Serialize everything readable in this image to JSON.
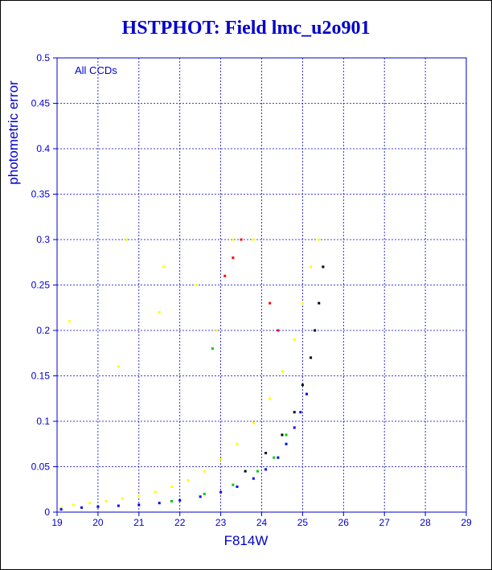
{
  "chart_data": {
    "type": "scatter",
    "title": "HSTPHOT: Field lmc_u2o901",
    "xlabel": "F814W",
    "ylabel": "photometric error",
    "annotation": "All CCDs",
    "xlim": [
      19,
      29
    ],
    "ylim": [
      0,
      0.5
    ],
    "x_ticks": [
      "19",
      "20",
      "21",
      "22",
      "23",
      "24",
      "25",
      "26",
      "27",
      "28",
      "29"
    ],
    "y_ticks": [
      "0",
      "0.05",
      "0.1",
      "0.15",
      "0.2",
      "0.25",
      "0.3",
      "0.35",
      "0.4",
      "0.45",
      "0.5"
    ],
    "grid": true,
    "series": [
      {
        "color": "#ffff00",
        "points": [
          [
            19.1,
            0.005
          ],
          [
            19.4,
            0.008
          ],
          [
            19.8,
            0.01
          ],
          [
            20.2,
            0.012
          ],
          [
            20.6,
            0.015
          ],
          [
            21.0,
            0.018
          ],
          [
            21.4,
            0.022
          ],
          [
            21.8,
            0.028
          ],
          [
            22.2,
            0.035
          ],
          [
            22.6,
            0.045
          ],
          [
            23.0,
            0.058
          ],
          [
            23.4,
            0.075
          ],
          [
            23.8,
            0.098
          ],
          [
            24.2,
            0.125
          ],
          [
            24.5,
            0.155
          ],
          [
            24.8,
            0.19
          ],
          [
            25.0,
            0.23
          ],
          [
            25.2,
            0.27
          ],
          [
            25.4,
            0.3
          ],
          [
            20.7,
            0.3
          ],
          [
            21.6,
            0.27
          ],
          [
            22.4,
            0.25
          ],
          [
            23.3,
            0.3
          ],
          [
            23.8,
            0.3
          ],
          [
            19.3,
            0.21
          ],
          [
            20.5,
            0.16
          ],
          [
            21.5,
            0.22
          ],
          [
            22.9,
            0.2
          ]
        ]
      },
      {
        "color": "#0000ff",
        "points": [
          [
            19.1,
            0.003
          ],
          [
            19.6,
            0.005
          ],
          [
            20.0,
            0.006
          ],
          [
            20.5,
            0.007
          ],
          [
            21.0,
            0.008
          ],
          [
            21.5,
            0.01
          ],
          [
            22.0,
            0.013
          ],
          [
            22.5,
            0.017
          ],
          [
            23.0,
            0.022
          ],
          [
            23.4,
            0.028
          ],
          [
            23.8,
            0.037
          ],
          [
            24.1,
            0.047
          ],
          [
            24.4,
            0.06
          ],
          [
            24.6,
            0.075
          ],
          [
            24.8,
            0.093
          ],
          [
            24.95,
            0.11
          ],
          [
            25.1,
            0.13
          ]
        ]
      },
      {
        "color": "#000000",
        "points": [
          [
            23.6,
            0.045
          ],
          [
            24.1,
            0.065
          ],
          [
            24.5,
            0.085
          ],
          [
            24.8,
            0.11
          ],
          [
            25.0,
            0.14
          ],
          [
            25.2,
            0.17
          ],
          [
            25.3,
            0.2
          ],
          [
            25.4,
            0.23
          ],
          [
            25.5,
            0.27
          ]
        ]
      },
      {
        "color": "#00cc00",
        "points": [
          [
            21.8,
            0.012
          ],
          [
            22.6,
            0.02
          ],
          [
            23.3,
            0.03
          ],
          [
            23.9,
            0.045
          ],
          [
            24.3,
            0.06
          ],
          [
            24.6,
            0.085
          ],
          [
            22.8,
            0.18
          ]
        ]
      },
      {
        "color": "#ff0000",
        "points": [
          [
            23.1,
            0.26
          ],
          [
            23.3,
            0.28
          ],
          [
            24.2,
            0.23
          ],
          [
            24.4,
            0.2
          ],
          [
            23.5,
            0.3
          ]
        ]
      }
    ]
  }
}
